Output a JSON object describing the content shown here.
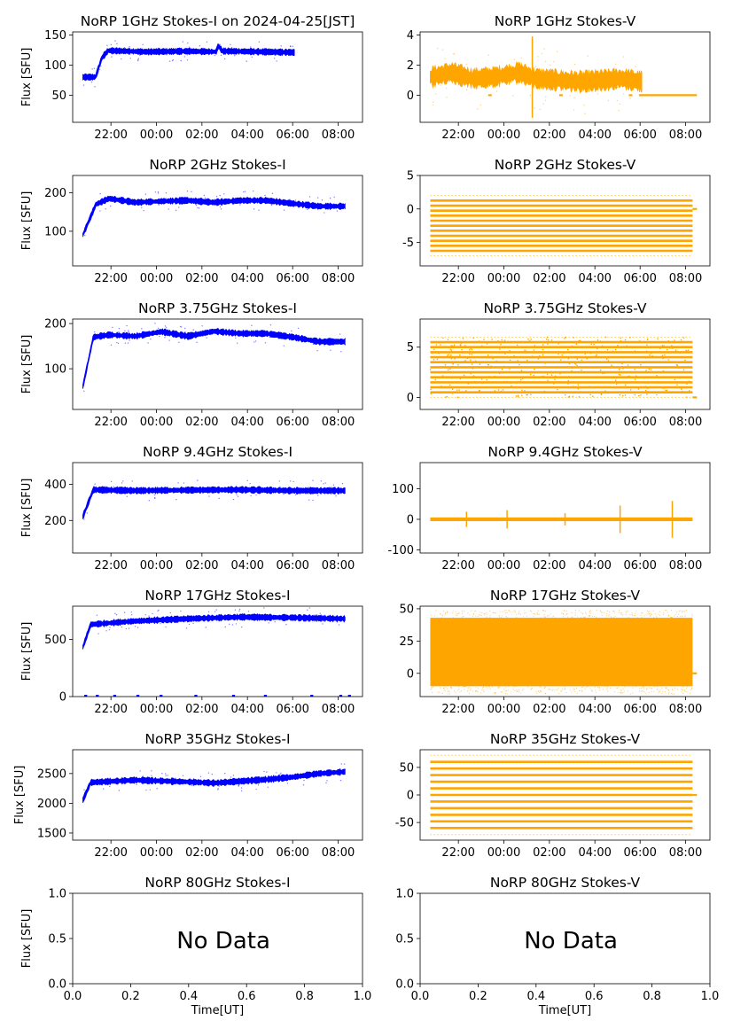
{
  "chart_data": [
    {
      "title": "NoRP 1GHz Stokes-I on 2024-04-25[JST]",
      "type": "scatter",
      "ylabel": "Flux [SFU]",
      "xlabel": "",
      "xticks": [
        "22:00",
        "00:00",
        "02:00",
        "04:00",
        "06:00",
        "08:00"
      ],
      "yticks": [
        50,
        100,
        150
      ],
      "ylim": [
        5,
        155
      ],
      "series": [
        {
          "values": [
            [
              0.06,
              80
            ],
            [
              0.09,
              112
            ],
            [
              0.12,
              124
            ],
            [
              0.3,
              122
            ],
            [
              0.5,
              123
            ],
            [
              0.63,
              122
            ],
            [
              0.64,
              132
            ],
            [
              0.66,
              123
            ],
            [
              0.7,
              123
            ],
            [
              0.85,
              122
            ],
            [
              1.0,
              121
            ]
          ]
        }
      ],
      "color": "#0000ff",
      "x_range": "20:45-06:00",
      "has_data": true
    },
    {
      "title": "NoRP 1GHz Stokes-V",
      "type": "scatter",
      "ylabel": "",
      "xlabel": "",
      "xticks": [
        "22:00",
        "00:00",
        "02:00",
        "04:00",
        "06:00",
        "08:00"
      ],
      "yticks": [
        0,
        2,
        4
      ],
      "ylim": [
        -1.8,
        4.2
      ],
      "series": [
        {
          "values": [
            [
              0.0,
              1.2
            ],
            [
              0.1,
              1.5
            ],
            [
              0.2,
              1.1
            ],
            [
              0.3,
              1.2
            ],
            [
              0.42,
              1.5
            ],
            [
              0.5,
              1.1
            ],
            [
              0.6,
              1.0
            ],
            [
              0.7,
              0.9
            ],
            [
              0.82,
              1.0
            ],
            [
              0.9,
              1.1
            ],
            [
              1.0,
              0.9
            ]
          ]
        }
      ],
      "color": "#ffa500",
      "x_range": "20:45-06:00",
      "has_data": true
    },
    {
      "title": "NoRP 2GHz Stokes-I",
      "type": "scatter",
      "ylabel": "Flux [SFU]",
      "xlabel": "",
      "xticks": [
        "22:00",
        "00:00",
        "02:00",
        "04:00",
        "06:00",
        "08:00"
      ],
      "yticks": [
        100,
        200
      ],
      "ylim": [
        10,
        245
      ],
      "series": [
        {
          "values": [
            [
              0.0,
              90
            ],
            [
              0.05,
              170
            ],
            [
              0.1,
              185
            ],
            [
              0.2,
              175
            ],
            [
              0.3,
              178
            ],
            [
              0.4,
              180
            ],
            [
              0.5,
              175
            ],
            [
              0.6,
              180
            ],
            [
              0.7,
              180
            ],
            [
              0.8,
              172
            ],
            [
              0.9,
              165
            ],
            [
              1.0,
              165
            ]
          ]
        }
      ],
      "color": "#0000ff",
      "x_range": "20:45-08:20",
      "has_data": true
    },
    {
      "title": "NoRP 2GHz Stokes-V",
      "type": "scatter",
      "ylabel": "",
      "xlabel": "",
      "xticks": [
        "22:00",
        "00:00",
        "02:00",
        "04:00",
        "06:00",
        "08:00"
      ],
      "yticks": [
        -5,
        0,
        5
      ],
      "ylim": [
        -8.5,
        5
      ],
      "series": [
        {
          "values": []
        }
      ],
      "color": "#ffa500",
      "x_range": "20:45-08:20",
      "has_data": true
    },
    {
      "title": "NoRP 3.75GHz Stokes-I",
      "type": "scatter",
      "ylabel": "Flux [SFU]",
      "xlabel": "",
      "xticks": [
        "22:00",
        "00:00",
        "02:00",
        "04:00",
        "06:00",
        "08:00"
      ],
      "yticks": [
        100,
        200
      ],
      "ylim": [
        10,
        210
      ],
      "series": [
        {
          "values": [
            [
              0.0,
              60
            ],
            [
              0.04,
              170
            ],
            [
              0.1,
              175
            ],
            [
              0.2,
              172
            ],
            [
              0.3,
              182
            ],
            [
              0.4,
              172
            ],
            [
              0.5,
              183
            ],
            [
              0.6,
              178
            ],
            [
              0.7,
              178
            ],
            [
              0.8,
              170
            ],
            [
              0.9,
              160
            ],
            [
              1.0,
              160
            ]
          ]
        }
      ],
      "color": "#0000ff",
      "x_range": "20:45-08:20",
      "has_data": true
    },
    {
      "title": "NoRP 3.75GHz Stokes-V",
      "type": "scatter",
      "ylabel": "",
      "xlabel": "",
      "xticks": [
        "22:00",
        "00:00",
        "02:00",
        "04:00",
        "06:00",
        "08:00"
      ],
      "yticks": [
        0,
        5
      ],
      "ylim": [
        -1.2,
        7.8
      ],
      "series": [
        {
          "values": []
        }
      ],
      "color": "#ffa500",
      "x_range": "20:45-08:20",
      "has_data": true
    },
    {
      "title": "NoRP 9.4GHz Stokes-I",
      "type": "scatter",
      "ylabel": "Flux [SFU]",
      "xlabel": "",
      "xticks": [
        "22:00",
        "00:00",
        "02:00",
        "04:00",
        "06:00",
        "08:00"
      ],
      "yticks": [
        200,
        400
      ],
      "ylim": [
        20,
        520
      ],
      "series": [
        {
          "values": [
            [
              0.0,
              220
            ],
            [
              0.04,
              370
            ],
            [
              0.2,
              365
            ],
            [
              0.4,
              368
            ],
            [
              0.6,
              370
            ],
            [
              0.8,
              365
            ],
            [
              1.0,
              365
            ]
          ]
        }
      ],
      "color": "#0000ff",
      "x_range": "20:45-08:20",
      "has_data": true
    },
    {
      "title": "NoRP 9.4GHz Stokes-V",
      "type": "scatter",
      "ylabel": "",
      "xlabel": "",
      "xticks": [
        "22:00",
        "00:00",
        "02:00",
        "04:00",
        "06:00",
        "08:00"
      ],
      "yticks": [
        -100,
        0,
        100
      ],
      "ylim": [
        -110,
        185
      ],
      "series": [
        {
          "values": [
            [
              0.0,
              0
            ],
            [
              1.0,
              0
            ]
          ]
        }
      ],
      "color": "#ffa500",
      "x_range": "20:45-08:20",
      "has_data": true
    },
    {
      "title": "NoRP 17GHz Stokes-I",
      "type": "scatter",
      "ylabel": "Flux [SFU]",
      "xlabel": "",
      "xticks": [
        "22:00",
        "00:00",
        "02:00",
        "04:00",
        "06:00",
        "08:00"
      ],
      "yticks": [
        0,
        500
      ],
      "ylim": [
        0,
        790
      ],
      "series": [
        {
          "values": [
            [
              0.0,
              430
            ],
            [
              0.03,
              630
            ],
            [
              0.2,
              660
            ],
            [
              0.4,
              680
            ],
            [
              0.6,
              695
            ],
            [
              0.8,
              690
            ],
            [
              1.0,
              680
            ]
          ]
        }
      ],
      "color": "#0000ff",
      "x_range": "20:45-08:20",
      "has_data": true
    },
    {
      "title": "NoRP 17GHz Stokes-V",
      "type": "scatter",
      "ylabel": "",
      "xlabel": "",
      "xticks": [
        "22:00",
        "00:00",
        "02:00",
        "04:00",
        "06:00",
        "08:00"
      ],
      "yticks": [
        0,
        25,
        50
      ],
      "ylim": [
        -18,
        52
      ],
      "series": [
        {
          "values": []
        }
      ],
      "color": "#ffa500",
      "x_range": "20:45-08:20",
      "has_data": true
    },
    {
      "title": "NoRP 35GHz Stokes-I",
      "type": "scatter",
      "ylabel": "Flux [SFU]",
      "xlabel": "",
      "xticks": [
        "22:00",
        "00:00",
        "02:00",
        "04:00",
        "06:00",
        "08:00"
      ],
      "yticks": [
        1500,
        2000,
        2500
      ],
      "ylim": [
        1380,
        2900
      ],
      "series": [
        {
          "values": [
            [
              0.0,
              2050
            ],
            [
              0.03,
              2350
            ],
            [
              0.2,
              2390
            ],
            [
              0.4,
              2360
            ],
            [
              0.5,
              2340
            ],
            [
              0.6,
              2370
            ],
            [
              0.7,
              2400
            ],
            [
              0.8,
              2440
            ],
            [
              0.9,
              2500
            ],
            [
              1.0,
              2530
            ]
          ]
        }
      ],
      "color": "#0000ff",
      "x_range": "20:45-08:20",
      "has_data": true
    },
    {
      "title": "NoRP 35GHz Stokes-V",
      "type": "scatter",
      "ylabel": "",
      "xlabel": "",
      "xticks": [
        "22:00",
        "00:00",
        "02:00",
        "04:00",
        "06:00",
        "08:00"
      ],
      "yticks": [
        -50,
        0,
        50
      ],
      "ylim": [
        -82,
        82
      ],
      "series": [
        {
          "values": []
        }
      ],
      "color": "#ffa500",
      "x_range": "20:45-08:20",
      "has_data": true
    },
    {
      "title": "NoRP 80GHz Stokes-I",
      "type": "scatter",
      "ylabel": "Flux [SFU]",
      "xlabel": "Time[UT]",
      "xticks": [
        "0.0",
        "0.2",
        "0.4",
        "0.6",
        "0.8",
        "1.0"
      ],
      "yticks": [
        "0.0",
        "0.5",
        "1.0"
      ],
      "ylim": [
        0,
        1
      ],
      "series": [],
      "has_data": false,
      "nodata_text": "No Data"
    },
    {
      "title": "NoRP 80GHz Stokes-V",
      "type": "scatter",
      "ylabel": "",
      "xlabel": "Time[UT]",
      "xticks": [
        "0.0",
        "0.2",
        "0.4",
        "0.6",
        "0.8",
        "1.0"
      ],
      "yticks": [
        "0.0",
        "0.5",
        "1.0"
      ],
      "ylim": [
        0,
        1
      ],
      "series": [],
      "has_data": false,
      "nodata_text": "No Data"
    }
  ]
}
